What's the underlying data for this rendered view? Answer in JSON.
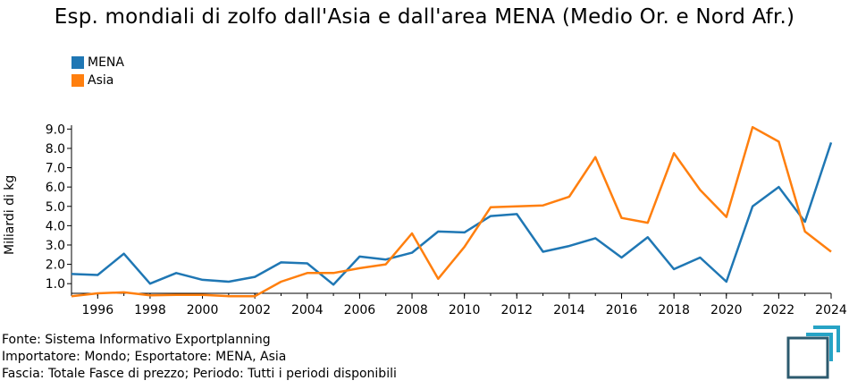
{
  "chart_data": {
    "type": "line",
    "title": "Esp. mondiali di zolfo dall'Asia e dall'area MENA (Medio Or. e Nord Afr.)",
    "ylabel": "Miliardi di kg",
    "xlabel": "",
    "legend_position": "top-left",
    "grid": false,
    "xlim": [
      1995,
      2024
    ],
    "ylim": [
      0.5,
      9.2
    ],
    "x_ticks": [
      1996,
      1998,
      2000,
      2002,
      2004,
      2006,
      2008,
      2010,
      2012,
      2014,
      2016,
      2018,
      2020,
      2022,
      2024
    ],
    "y_ticks": [
      "1.0",
      "2.0",
      "3.0",
      "4.0",
      "5.0",
      "6.0",
      "7.0",
      "8.0",
      "9.0"
    ],
    "x": [
      1995,
      1996,
      1997,
      1998,
      1999,
      2000,
      2001,
      2002,
      2003,
      2004,
      2005,
      2006,
      2007,
      2008,
      2009,
      2010,
      2011,
      2012,
      2013,
      2014,
      2015,
      2016,
      2017,
      2018,
      2019,
      2020,
      2021,
      2022,
      2023,
      2024
    ],
    "series": [
      {
        "name": "MENA",
        "color": "#1f77b4",
        "values": [
          1.5,
          1.45,
          2.55,
          1.0,
          1.55,
          1.2,
          1.1,
          1.35,
          2.1,
          2.05,
          0.95,
          2.4,
          2.25,
          2.6,
          3.7,
          3.65,
          4.5,
          4.6,
          2.65,
          2.95,
          3.35,
          2.35,
          3.4,
          1.75,
          2.35,
          1.1,
          5.0,
          6.0,
          4.2,
          8.3
        ]
      },
      {
        "name": "Asia",
        "color": "#ff7f0e",
        "values": [
          0.35,
          0.5,
          0.55,
          0.4,
          0.42,
          0.42,
          0.35,
          0.35,
          1.1,
          1.55,
          1.55,
          1.8,
          2.0,
          3.6,
          1.25,
          2.9,
          4.95,
          5.0,
          5.05,
          5.5,
          7.55,
          4.4,
          4.15,
          7.75,
          5.85,
          4.45,
          9.1,
          8.35,
          3.7,
          2.65
        ]
      }
    ]
  },
  "footer": {
    "line1": "Fonte: Sistema Informativo Exportplanning",
    "line2": "Importatore: Mondo; Esportatore: MENA, Asia",
    "line3": "Fascia: Totale Fasce di prezzo; Periodo: Tutti i periodi disponibili"
  },
  "logo_icon": "exportplanning-logo-icon"
}
